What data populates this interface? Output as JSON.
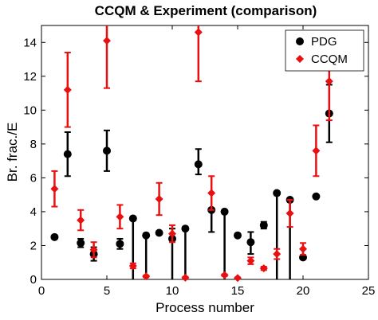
{
  "chart_data": {
    "type": "scatter",
    "title": "CCQM & Experiment (comparison)",
    "xlabel": "Process number",
    "ylabel": "Br. frac./E",
    "xlim": [
      0,
      25
    ],
    "ylim": [
      0,
      15
    ],
    "xticks": [
      "0",
      "5",
      "10",
      "15",
      "20",
      "25"
    ],
    "yticks": [
      "0",
      "2",
      "4",
      "6",
      "8",
      "10",
      "12",
      "14"
    ],
    "legend": "top-right",
    "series": [
      {
        "name": "PDG",
        "color": "#000000",
        "marker": "circle",
        "points": [
          {
            "x": 1,
            "y": 2.5,
            "lo": 2.5,
            "hi": 2.5
          },
          {
            "x": 2,
            "y": 7.4,
            "lo": 6.1,
            "hi": 8.7
          },
          {
            "x": 3,
            "y": 2.15,
            "lo": 1.9,
            "hi": 2.4
          },
          {
            "x": 4,
            "y": 1.5,
            "lo": 1.1,
            "hi": 1.9
          },
          {
            "x": 5,
            "y": 7.6,
            "lo": 6.4,
            "hi": 8.8
          },
          {
            "x": 6,
            "y": 2.1,
            "lo": 1.8,
            "hi": 2.4
          },
          {
            "x": 7,
            "y": 3.6,
            "lo": 0,
            "hi": 3.6
          },
          {
            "x": 8,
            "y": 2.6,
            "lo": 0,
            "hi": 2.6
          },
          {
            "x": 9,
            "y": 2.75,
            "lo": 2.75,
            "hi": 2.75
          },
          {
            "x": 10,
            "y": 2.4,
            "lo": 0,
            "hi": 3.0
          },
          {
            "x": 11,
            "y": 3.0,
            "lo": 0,
            "hi": 3.0
          },
          {
            "x": 12,
            "y": 6.8,
            "lo": 6.2,
            "hi": 7.7
          },
          {
            "x": 13,
            "y": 4.1,
            "lo": 2.8,
            "hi": 4.1
          },
          {
            "x": 14,
            "y": 4.0,
            "lo": 0,
            "hi": 4.0
          },
          {
            "x": 15,
            "y": 2.6,
            "lo": 2.6,
            "hi": 2.6
          },
          {
            "x": 16,
            "y": 2.2,
            "lo": 1.5,
            "hi": 2.8
          },
          {
            "x": 17,
            "y": 3.2,
            "lo": 3.0,
            "hi": 3.4
          },
          {
            "x": 18,
            "y": 5.1,
            "lo": 0,
            "hi": 5.1
          },
          {
            "x": 19,
            "y": 4.7,
            "lo": 0,
            "hi": 4.7
          },
          {
            "x": 20,
            "y": 1.3,
            "lo": 1.3,
            "hi": 1.3
          },
          {
            "x": 21,
            "y": 4.9,
            "lo": 4.9,
            "hi": 4.9
          },
          {
            "x": 22,
            "y": 9.8,
            "lo": 8.1,
            "hi": 11.5
          }
        ]
      },
      {
        "name": "CCQM",
        "color": "#e81010",
        "marker": "diamond",
        "points": [
          {
            "x": 1,
            "y": 5.35,
            "lo": 4.3,
            "hi": 6.4
          },
          {
            "x": 2,
            "y": 11.2,
            "lo": 9.0,
            "hi": 13.4
          },
          {
            "x": 3,
            "y": 3.5,
            "lo": 2.9,
            "hi": 4.1
          },
          {
            "x": 4,
            "y": 1.75,
            "lo": 1.3,
            "hi": 2.2
          },
          {
            "x": 5,
            "y": 14.1,
            "lo": 11.3,
            "hi": 15
          },
          {
            "x": 6,
            "y": 3.7,
            "lo": 3.0,
            "hi": 4.4
          },
          {
            "x": 7,
            "y": 0.8,
            "lo": 0.65,
            "hi": 0.95
          },
          {
            "x": 8,
            "y": 0.18,
            "lo": 0.12,
            "hi": 0.24
          },
          {
            "x": 9,
            "y": 4.75,
            "lo": 3.8,
            "hi": 5.7
          },
          {
            "x": 10,
            "y": 2.7,
            "lo": 2.2,
            "hi": 3.2
          },
          {
            "x": 11,
            "y": 0.1,
            "lo": 0.05,
            "hi": 0.15
          },
          {
            "x": 12,
            "y": 14.6,
            "lo": 11.7,
            "hi": 15
          },
          {
            "x": 13,
            "y": 5.1,
            "lo": 4.1,
            "hi": 6.1
          },
          {
            "x": 14,
            "y": 0.25,
            "lo": 0.2,
            "hi": 0.3
          },
          {
            "x": 15,
            "y": 0.08,
            "lo": 0.04,
            "hi": 0.12
          },
          {
            "x": 16,
            "y": 1.1,
            "lo": 0.9,
            "hi": 1.3
          },
          {
            "x": 17,
            "y": 0.65,
            "lo": 0.55,
            "hi": 0.75
          },
          {
            "x": 18,
            "y": 1.5,
            "lo": 1.2,
            "hi": 1.8
          },
          {
            "x": 19,
            "y": 3.9,
            "lo": 3.1,
            "hi": 4.7
          },
          {
            "x": 20,
            "y": 1.8,
            "lo": 1.45,
            "hi": 2.15
          },
          {
            "x": 21,
            "y": 7.6,
            "lo": 6.1,
            "hi": 9.1
          },
          {
            "x": 22,
            "y": 11.7,
            "lo": 9.4,
            "hi": 14.0
          }
        ]
      }
    ]
  }
}
